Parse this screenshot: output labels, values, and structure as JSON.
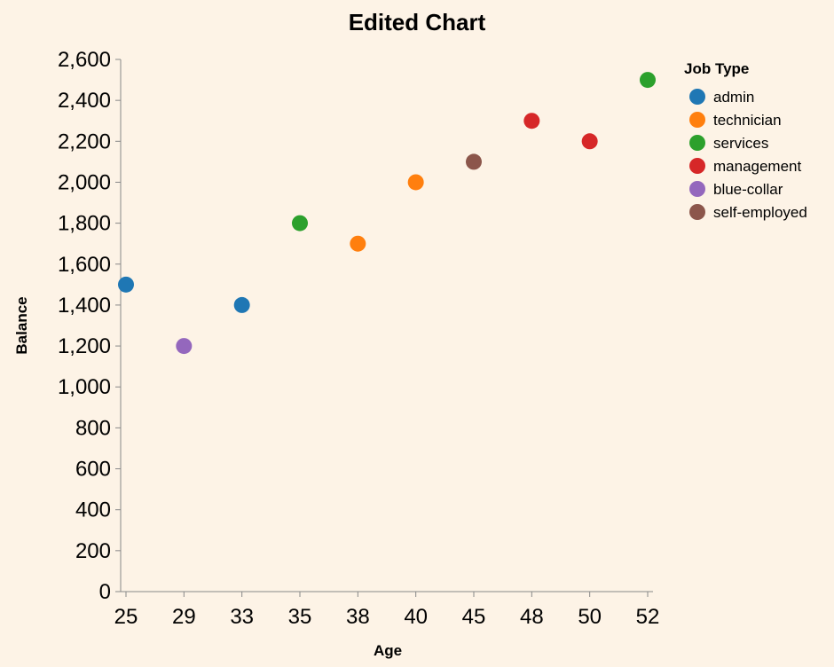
{
  "chart_data": {
    "type": "scatter",
    "title": "Edited Chart",
    "xlabel": "Age",
    "ylabel": "Balance",
    "x_scale": "ordinal",
    "x_categories": [
      "25",
      "29",
      "33",
      "35",
      "38",
      "40",
      "45",
      "48",
      "50",
      "52"
    ],
    "ylim": [
      0,
      2600
    ],
    "y_ticks": [
      0,
      200,
      400,
      600,
      800,
      1000,
      1200,
      1400,
      1600,
      1800,
      2000,
      2200,
      2400,
      2600
    ],
    "y_tick_labels": [
      "0",
      "200",
      "400",
      "600",
      "800",
      "1,000",
      "1,200",
      "1,400",
      "1,600",
      "1,800",
      "2,000",
      "2,200",
      "2,400",
      "2,600"
    ],
    "grid": false,
    "legend": {
      "title": "Job Type",
      "placement": "top-right",
      "entries": [
        {
          "label": "admin",
          "color": "#1f77b4"
        },
        {
          "label": "technician",
          "color": "#ff7f0e"
        },
        {
          "label": "services",
          "color": "#2ca02c"
        },
        {
          "label": "management",
          "color": "#d62728"
        },
        {
          "label": "blue-collar",
          "color": "#9467bd"
        },
        {
          "label": "self-employed",
          "color": "#8c564b"
        }
      ]
    },
    "points": [
      {
        "x": "25",
        "y": 1500,
        "job": "admin"
      },
      {
        "x": "29",
        "y": 1200,
        "job": "blue-collar"
      },
      {
        "x": "33",
        "y": 1400,
        "job": "admin"
      },
      {
        "x": "35",
        "y": 1800,
        "job": "services"
      },
      {
        "x": "38",
        "y": 1700,
        "job": "technician"
      },
      {
        "x": "40",
        "y": 2000,
        "job": "technician"
      },
      {
        "x": "45",
        "y": 2100,
        "job": "self-employed"
      },
      {
        "x": "48",
        "y": 2300,
        "job": "management"
      },
      {
        "x": "50",
        "y": 2200,
        "job": "management"
      },
      {
        "x": "52",
        "y": 2500,
        "job": "services"
      }
    ]
  }
}
